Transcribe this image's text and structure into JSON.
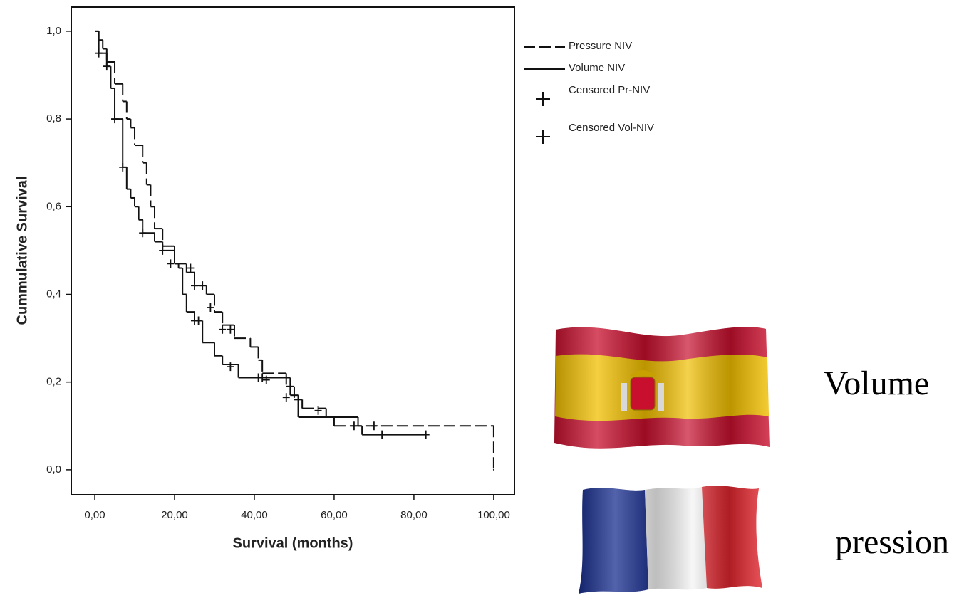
{
  "chart_data": {
    "type": "km-step",
    "x_label": "Survival (months)",
    "y_label": "Cummulative Survival",
    "xlim": [
      -5.9,
      105.2
    ],
    "ylim": [
      -0.057,
      1.055
    ],
    "xticks": [
      {
        "value": 0,
        "label": "0,00"
      },
      {
        "value": 20,
        "label": "20,00"
      },
      {
        "value": 40,
        "label": "40,00"
      },
      {
        "value": 60,
        "label": "60,00"
      },
      {
        "value": 80,
        "label": "80,00"
      },
      {
        "value": 100,
        "label": "100,00"
      }
    ],
    "yticks": [
      {
        "value": 0,
        "label": "0,0"
      },
      {
        "value": 0.2,
        "label": "0,2"
      },
      {
        "value": 0.4,
        "label": "0,4"
      },
      {
        "value": 0.6,
        "label": "0,6"
      },
      {
        "value": 0.8,
        "label": "0,8"
      },
      {
        "value": 1,
        "label": "1,0"
      }
    ],
    "series": [
      {
        "name": "Pressure NIV",
        "color": "#111111",
        "style": "dashed",
        "x": [
          0,
          1,
          2,
          3,
          5,
          7,
          8,
          9,
          10,
          12,
          13,
          14,
          15,
          17,
          20,
          23,
          25,
          28,
          30,
          32,
          35,
          39,
          41,
          42,
          48,
          50,
          52,
          58,
          60,
          100
        ],
        "values": [
          1.0,
          0.98,
          0.96,
          0.93,
          0.88,
          0.84,
          0.8,
          0.78,
          0.74,
          0.7,
          0.65,
          0.6,
          0.55,
          0.51,
          0.47,
          0.45,
          0.42,
          0.4,
          0.36,
          0.33,
          0.3,
          0.28,
          0.25,
          0.22,
          0.19,
          0.16,
          0.14,
          0.12,
          0.1,
          0.0
        ]
      },
      {
        "name": "Volume NIV",
        "color": "#111111",
        "style": "solid",
        "x": [
          0,
          1,
          3,
          4,
          5,
          7,
          8,
          9,
          10,
          11,
          12,
          15,
          17,
          20,
          21,
          22,
          23,
          25,
          27,
          30,
          32,
          36,
          49,
          51,
          58,
          66,
          67,
          83
        ],
        "values": [
          1.0,
          0.95,
          0.92,
          0.87,
          0.8,
          0.69,
          0.64,
          0.62,
          0.6,
          0.57,
          0.54,
          0.52,
          0.5,
          0.47,
          0.46,
          0.4,
          0.36,
          0.34,
          0.29,
          0.26,
          0.24,
          0.21,
          0.17,
          0.12,
          0.12,
          0.1,
          0.08,
          0.08
        ]
      },
      {
        "name": "Censored Pr-NIV",
        "color": "#111111",
        "style": "censor",
        "x": [
          25,
          27,
          29,
          32,
          34,
          42,
          56,
          65,
          70
        ],
        "values": [
          0.42,
          0.42,
          0.37,
          0.32,
          0.32,
          0.21,
          0.135,
          0.1,
          0.1
        ]
      },
      {
        "name": "Censored Vol-NIV",
        "color": "#111111",
        "style": "censor",
        "x": [
          1,
          3,
          5,
          7,
          12,
          17,
          19,
          24,
          25,
          26,
          34,
          41,
          43,
          48,
          72,
          83
        ],
        "values": [
          0.95,
          0.92,
          0.8,
          0.69,
          0.54,
          0.5,
          0.47,
          0.46,
          0.34,
          0.34,
          0.235,
          0.21,
          0.205,
          0.165,
          0.08,
          0.08
        ]
      }
    ],
    "annotations": [
      "Volume",
      "pression"
    ]
  }
}
